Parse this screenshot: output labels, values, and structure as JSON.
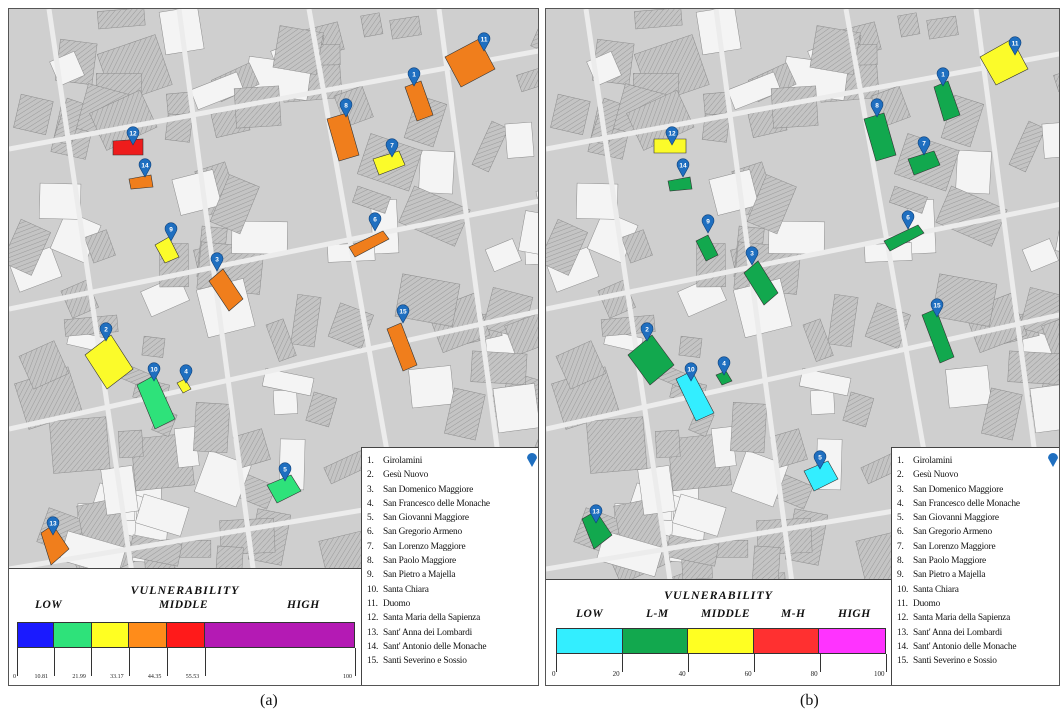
{
  "panels": [
    {
      "id": "a",
      "caption": "(a)",
      "legend_title": "VULNERABILITY",
      "categories": [
        "LOW",
        "MIDDLE",
        "HIGH"
      ],
      "scale_ticks": [
        "0",
        "10.81",
        "21.99",
        "33.17",
        "44.35",
        "55.53",
        "100"
      ],
      "scale_stops": [
        0,
        10.81,
        21.99,
        33.17,
        44.35,
        55.53,
        100
      ],
      "scale_colors": [
        "#1a1aff",
        "#2ee27a",
        "#ffff22",
        "#ff8c1a",
        "#ff1a1a",
        "#b41ab4"
      ],
      "buildings": [
        {
          "id": "1",
          "color": "#f07e1c"
        },
        {
          "id": "2",
          "color": "#fbfb2a"
        },
        {
          "id": "3",
          "color": "#f07e1c"
        },
        {
          "id": "4",
          "color": "#fbfb2a"
        },
        {
          "id": "5",
          "color": "#2ee27a"
        },
        {
          "id": "6",
          "color": "#f07e1c"
        },
        {
          "id": "7",
          "color": "#fbfb2a"
        },
        {
          "id": "8",
          "color": "#f07e1c"
        },
        {
          "id": "9",
          "color": "#fbfb2a"
        },
        {
          "id": "10",
          "color": "#2ee27a"
        },
        {
          "id": "11",
          "color": "#f07e1c"
        },
        {
          "id": "12",
          "color": "#ee1c1c"
        },
        {
          "id": "13",
          "color": "#f07e1c"
        },
        {
          "id": "14",
          "color": "#f07e1c"
        },
        {
          "id": "15",
          "color": "#f07e1c"
        }
      ]
    },
    {
      "id": "b",
      "caption": "(b)",
      "legend_title": "VULNERABILITY",
      "categories": [
        "LOW",
        "L-M",
        "MIDDLE",
        "M-H",
        "HIGH"
      ],
      "scale_ticks": [
        "0",
        "20",
        "40",
        "60",
        "80",
        "100"
      ],
      "scale_stops": [
        0,
        20,
        40,
        60,
        80,
        100
      ],
      "scale_colors": [
        "#33eeff",
        "#12a84e",
        "#ffff22",
        "#ff3030",
        "#ff33ff"
      ],
      "buildings": [
        {
          "id": "1",
          "color": "#12a84e"
        },
        {
          "id": "2",
          "color": "#12a84e"
        },
        {
          "id": "3",
          "color": "#12a84e"
        },
        {
          "id": "4",
          "color": "#12a84e"
        },
        {
          "id": "5",
          "color": "#33eeff"
        },
        {
          "id": "6",
          "color": "#12a84e"
        },
        {
          "id": "7",
          "color": "#12a84e"
        },
        {
          "id": "8",
          "color": "#12a84e"
        },
        {
          "id": "9",
          "color": "#12a84e"
        },
        {
          "id": "10",
          "color": "#33eeff"
        },
        {
          "id": "11",
          "color": "#fbfb2a"
        },
        {
          "id": "12",
          "color": "#fbfb2a"
        },
        {
          "id": "13",
          "color": "#12a84e"
        },
        {
          "id": "14",
          "color": "#12a84e"
        },
        {
          "id": "15",
          "color": "#12a84e"
        }
      ]
    }
  ],
  "churches": [
    "Girolamini",
    "Gesù Nuovo",
    "San Domenico Maggiore",
    "San Francesco delle Monache",
    "San Giovanni Maggiore",
    "San Gregorio Armeno",
    "San Lorenzo Maggiore",
    "San Paolo Maggiore",
    "San Pietro a Majella",
    "Santa Chiara",
    "Duomo",
    "Santa Maria della Sapienza",
    "Sant' Anna dei Lombardi",
    "Sant' Antonio delle Monache",
    "Santi Severino e Sossio"
  ],
  "marker_color": "#1f6fc0"
}
